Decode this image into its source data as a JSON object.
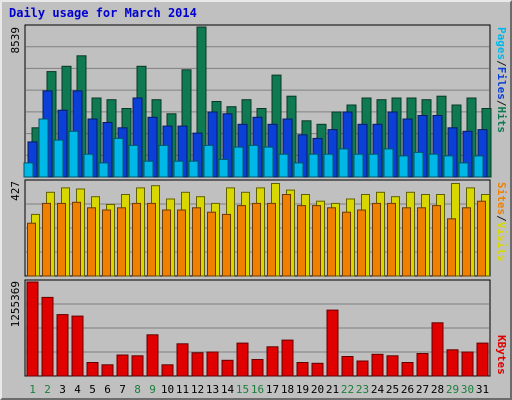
{
  "title": "Daily usage for March 2014",
  "panels": {
    "hits": {
      "ymax_label": "8539",
      "legend": [
        {
          "text": "Pages",
          "color": "#00b8e8"
        },
        {
          "text": "/",
          "color": "#1e1e1e"
        },
        {
          "text": "Files",
          "color": "#0a3fd8"
        },
        {
          "text": "/",
          "color": "#1e1e1e"
        },
        {
          "text": "Hits",
          "color": "#0f7a52"
        }
      ]
    },
    "visits": {
      "ymax_label": "427",
      "legend": [
        {
          "text": "Sites",
          "color": "#f08000"
        },
        {
          "text": "/",
          "color": "#1e1e1e"
        },
        {
          "text": "Visits",
          "color": "#d8d800"
        }
      ]
    },
    "kbytes": {
      "ymax_label": "1255369",
      "legend": [
        {
          "text": "KBytes",
          "color": "#e00000"
        }
      ]
    }
  },
  "chart_data": [
    {
      "type": "bar",
      "categories": [
        "1",
        "2",
        "3",
        "4",
        "5",
        "6",
        "7",
        "8",
        "9",
        "10",
        "11",
        "12",
        "13",
        "14",
        "15",
        "16",
        "17",
        "18",
        "19",
        "20",
        "21",
        "22",
        "23",
        "24",
        "25",
        "26",
        "27",
        "28",
        "29",
        "30",
        "31"
      ],
      "weekend_days": [
        "1",
        "2",
        "8",
        "9",
        "15",
        "16",
        "22",
        "23",
        "29",
        "30"
      ],
      "ylim": [
        0,
        8539
      ],
      "series": [
        {
          "name": "Hits",
          "color": "#0f7a52",
          "values": [
            2800,
            6000,
            6300,
            6900,
            4500,
            4400,
            3900,
            6300,
            4400,
            3600,
            6100,
            8539,
            4300,
            4000,
            4400,
            3900,
            5800,
            4600,
            3200,
            3000,
            3700,
            4100,
            4500,
            4400,
            4500,
            4500,
            4400,
            4600,
            4100,
            4500,
            3900
          ]
        },
        {
          "name": "Files",
          "color": "#0a3fd8",
          "values": [
            2000,
            4900,
            3800,
            4900,
            3300,
            3100,
            2800,
            4500,
            3400,
            2900,
            2900,
            2500,
            3700,
            3600,
            3000,
            3400,
            3000,
            3300,
            2400,
            2200,
            2700,
            3700,
            3000,
            3000,
            3700,
            3300,
            3500,
            3500,
            2800,
            2600,
            2700
          ]
        },
        {
          "name": "Pages",
          "color": "#00b8e8",
          "values": [
            800,
            3300,
            2100,
            2600,
            1300,
            800,
            2200,
            1800,
            900,
            1800,
            900,
            900,
            1800,
            1000,
            1700,
            1800,
            1700,
            1300,
            800,
            1300,
            1300,
            1600,
            1300,
            1300,
            1600,
            1200,
            1400,
            1300,
            1200,
            800,
            1200
          ]
        }
      ]
    },
    {
      "type": "bar",
      "categories": [
        "1",
        "2",
        "3",
        "4",
        "5",
        "6",
        "7",
        "8",
        "9",
        "10",
        "11",
        "12",
        "13",
        "14",
        "15",
        "16",
        "17",
        "18",
        "19",
        "20",
        "21",
        "22",
        "23",
        "24",
        "25",
        "26",
        "27",
        "28",
        "29",
        "30",
        "31"
      ],
      "ylim": [
        0,
        427
      ],
      "series": [
        {
          "name": "Visits",
          "color": "#d8d800",
          "values": [
            280,
            380,
            400,
            395,
            360,
            325,
            370,
            400,
            410,
            350,
            380,
            360,
            330,
            400,
            380,
            400,
            420,
            390,
            370,
            340,
            330,
            350,
            370,
            380,
            360,
            380,
            370,
            370,
            420,
            400,
            370
          ]
        },
        {
          "name": "Sites",
          "color": "#f08000",
          "values": [
            240,
            330,
            330,
            335,
            310,
            300,
            310,
            330,
            330,
            300,
            300,
            310,
            290,
            280,
            320,
            330,
            330,
            370,
            320,
            320,
            310,
            290,
            300,
            330,
            330,
            310,
            310,
            320,
            260,
            310,
            340
          ]
        }
      ]
    },
    {
      "type": "bar",
      "categories": [
        "1",
        "2",
        "3",
        "4",
        "5",
        "6",
        "7",
        "8",
        "9",
        "10",
        "11",
        "12",
        "13",
        "14",
        "15",
        "16",
        "17",
        "18",
        "19",
        "20",
        "21",
        "22",
        "23",
        "24",
        "25",
        "26",
        "27",
        "28",
        "29",
        "30",
        "31"
      ],
      "ylim": [
        0,
        1255369
      ],
      "series": [
        {
          "name": "KBytes",
          "color": "#e00000",
          "values": [
            1255369,
            1050000,
            820000,
            800000,
            180000,
            150000,
            280000,
            270000,
            550000,
            150000,
            430000,
            310000,
            320000,
            210000,
            440000,
            220000,
            390000,
            480000,
            180000,
            170000,
            880000,
            260000,
            200000,
            290000,
            270000,
            180000,
            300000,
            710000,
            350000,
            320000,
            440000
          ]
        }
      ]
    }
  ]
}
